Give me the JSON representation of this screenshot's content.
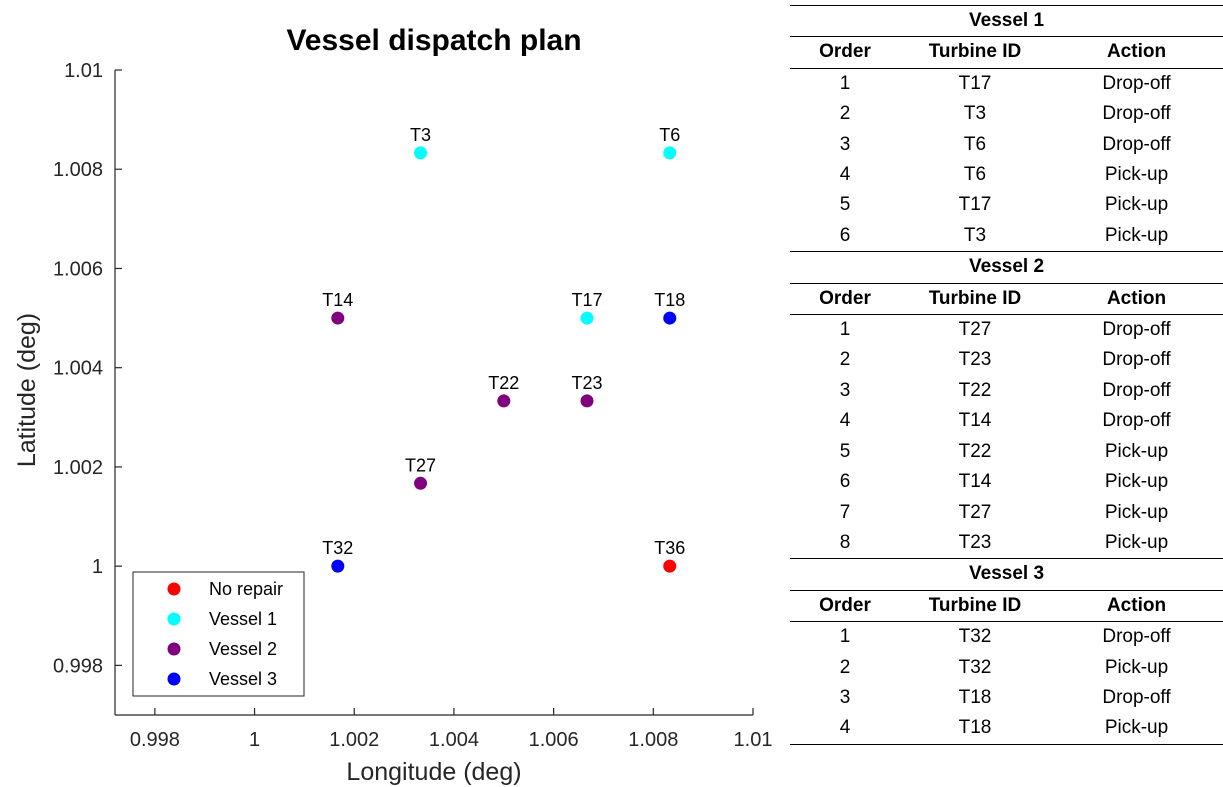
{
  "chart_data": {
    "type": "scatter",
    "title": "Vessel dispatch plan",
    "xlabel": "Longitude (deg)",
    "ylabel": "Latitude (deg)",
    "xlim": [
      0.9972,
      1.01
    ],
    "ylim": [
      0.997,
      1.01
    ],
    "xticks": [
      0.998,
      1.0,
      1.002,
      1.004,
      1.006,
      1.008,
      1.01
    ],
    "xtick_labels": [
      "0.998",
      "1",
      "1.002",
      "1.004",
      "1.006",
      "1.008",
      "1.01"
    ],
    "yticks": [
      0.998,
      1.0,
      1.002,
      1.004,
      1.006,
      1.008,
      1.01
    ],
    "ytick_labels": [
      "0.998",
      "1",
      "1.002",
      "1.004",
      "1.006",
      "1.008",
      "1.01"
    ],
    "grid": false,
    "legend_position": "bottom-left",
    "series": [
      {
        "name": "No repair",
        "color": "#ff0000",
        "points": [
          {
            "label": "T36",
            "x": 1.00833,
            "y": 1.0
          }
        ]
      },
      {
        "name": "Vessel 1",
        "color": "#00ffff",
        "points": [
          {
            "label": "T3",
            "x": 1.00333,
            "y": 1.00833
          },
          {
            "label": "T6",
            "x": 1.00833,
            "y": 1.00833
          },
          {
            "label": "T17",
            "x": 1.00667,
            "y": 1.005
          }
        ]
      },
      {
        "name": "Vessel 2",
        "color": "#800080",
        "points": [
          {
            "label": "T14",
            "x": 1.00167,
            "y": 1.005
          },
          {
            "label": "T22",
            "x": 1.005,
            "y": 1.00333
          },
          {
            "label": "T23",
            "x": 1.00667,
            "y": 1.00333
          },
          {
            "label": "T27",
            "x": 1.00333,
            "y": 1.00167
          }
        ]
      },
      {
        "name": "Vessel 3",
        "color": "#0000ff",
        "points": [
          {
            "label": "T18",
            "x": 1.00833,
            "y": 1.005
          },
          {
            "label": "T32",
            "x": 1.00167,
            "y": 1.0
          }
        ]
      }
    ]
  },
  "tables": [
    {
      "title": "Vessel 1",
      "headers": [
        "Order",
        "Turbine ID",
        "Action"
      ],
      "rows": [
        [
          "1",
          "T17",
          "Drop-off"
        ],
        [
          "2",
          "T3",
          "Drop-off"
        ],
        [
          "3",
          "T6",
          "Drop-off"
        ],
        [
          "4",
          "T6",
          "Pick-up"
        ],
        [
          "5",
          "T17",
          "Pick-up"
        ],
        [
          "6",
          "T3",
          "Pick-up"
        ]
      ]
    },
    {
      "title": "Vessel 2",
      "headers": [
        "Order",
        "Turbine ID",
        "Action"
      ],
      "rows": [
        [
          "1",
          "T27",
          "Drop-off"
        ],
        [
          "2",
          "T23",
          "Drop-off"
        ],
        [
          "3",
          "T22",
          "Drop-off"
        ],
        [
          "4",
          "T14",
          "Drop-off"
        ],
        [
          "5",
          "T22",
          "Pick-up"
        ],
        [
          "6",
          "T14",
          "Pick-up"
        ],
        [
          "7",
          "T27",
          "Pick-up"
        ],
        [
          "8",
          "T23",
          "Pick-up"
        ]
      ]
    },
    {
      "title": "Vessel 3",
      "headers": [
        "Order",
        "Turbine ID",
        "Action"
      ],
      "rows": [
        [
          "1",
          "T32",
          "Drop-off"
        ],
        [
          "2",
          "T32",
          "Pick-up"
        ],
        [
          "3",
          "T18",
          "Drop-off"
        ],
        [
          "4",
          "T18",
          "Pick-up"
        ]
      ]
    }
  ]
}
